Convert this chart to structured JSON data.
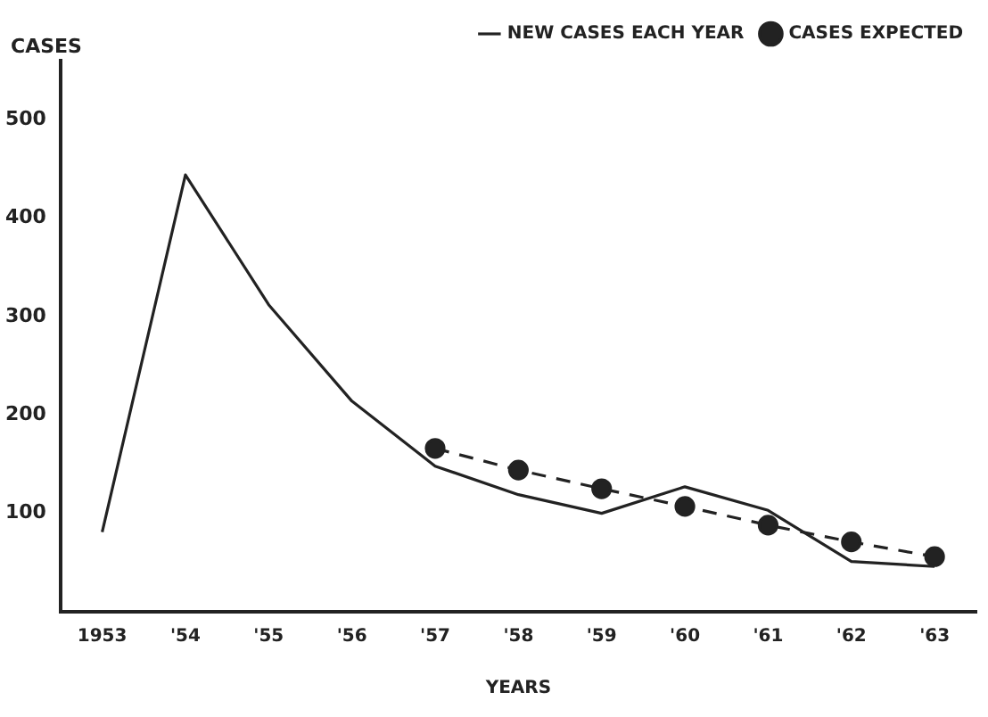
{
  "chart_data": {
    "type": "line",
    "xlabel": "YEARS",
    "ylabel": "CASES",
    "categories": [
      "1953",
      "'54",
      "'55",
      "'56",
      "'57",
      "'58",
      "'59",
      "'60",
      "'61",
      "'62",
      "'63"
    ],
    "series": [
      {
        "name": "NEW CASES EACH YEAR",
        "color": "#222222",
        "line_style": "solid",
        "marker": "none",
        "values": [
          81,
          444,
          312,
          214,
          148,
          119,
          100,
          127,
          103,
          51,
          46
        ]
      },
      {
        "name": "CASES EXPECTED",
        "color": "#222222",
        "line_style": "dashed",
        "marker": "circle",
        "values": [
          null,
          null,
          null,
          null,
          166,
          144,
          125,
          107,
          88,
          71,
          56
        ]
      }
    ],
    "ylim": [
      0,
      560
    ],
    "yticks": [
      100,
      200,
      300,
      400,
      500
    ],
    "grid": false,
    "legend": "top right"
  }
}
